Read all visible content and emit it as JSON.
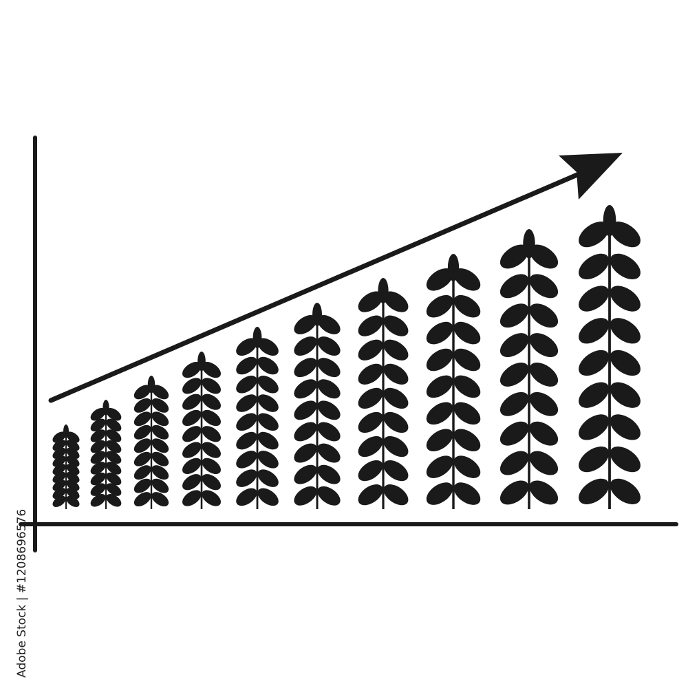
{
  "illustration": {
    "subject": "growth-chart-with-wheat-plants",
    "plant_count": 10,
    "trend": "increasing",
    "ink_color": "#1a1a1a",
    "background_color": "#ffffff",
    "icons": [
      "axis-lines",
      "trend-arrow-icon",
      "wheat-plant-icon"
    ]
  },
  "watermark": {
    "text": "Adobe Stock | #1208696576"
  }
}
